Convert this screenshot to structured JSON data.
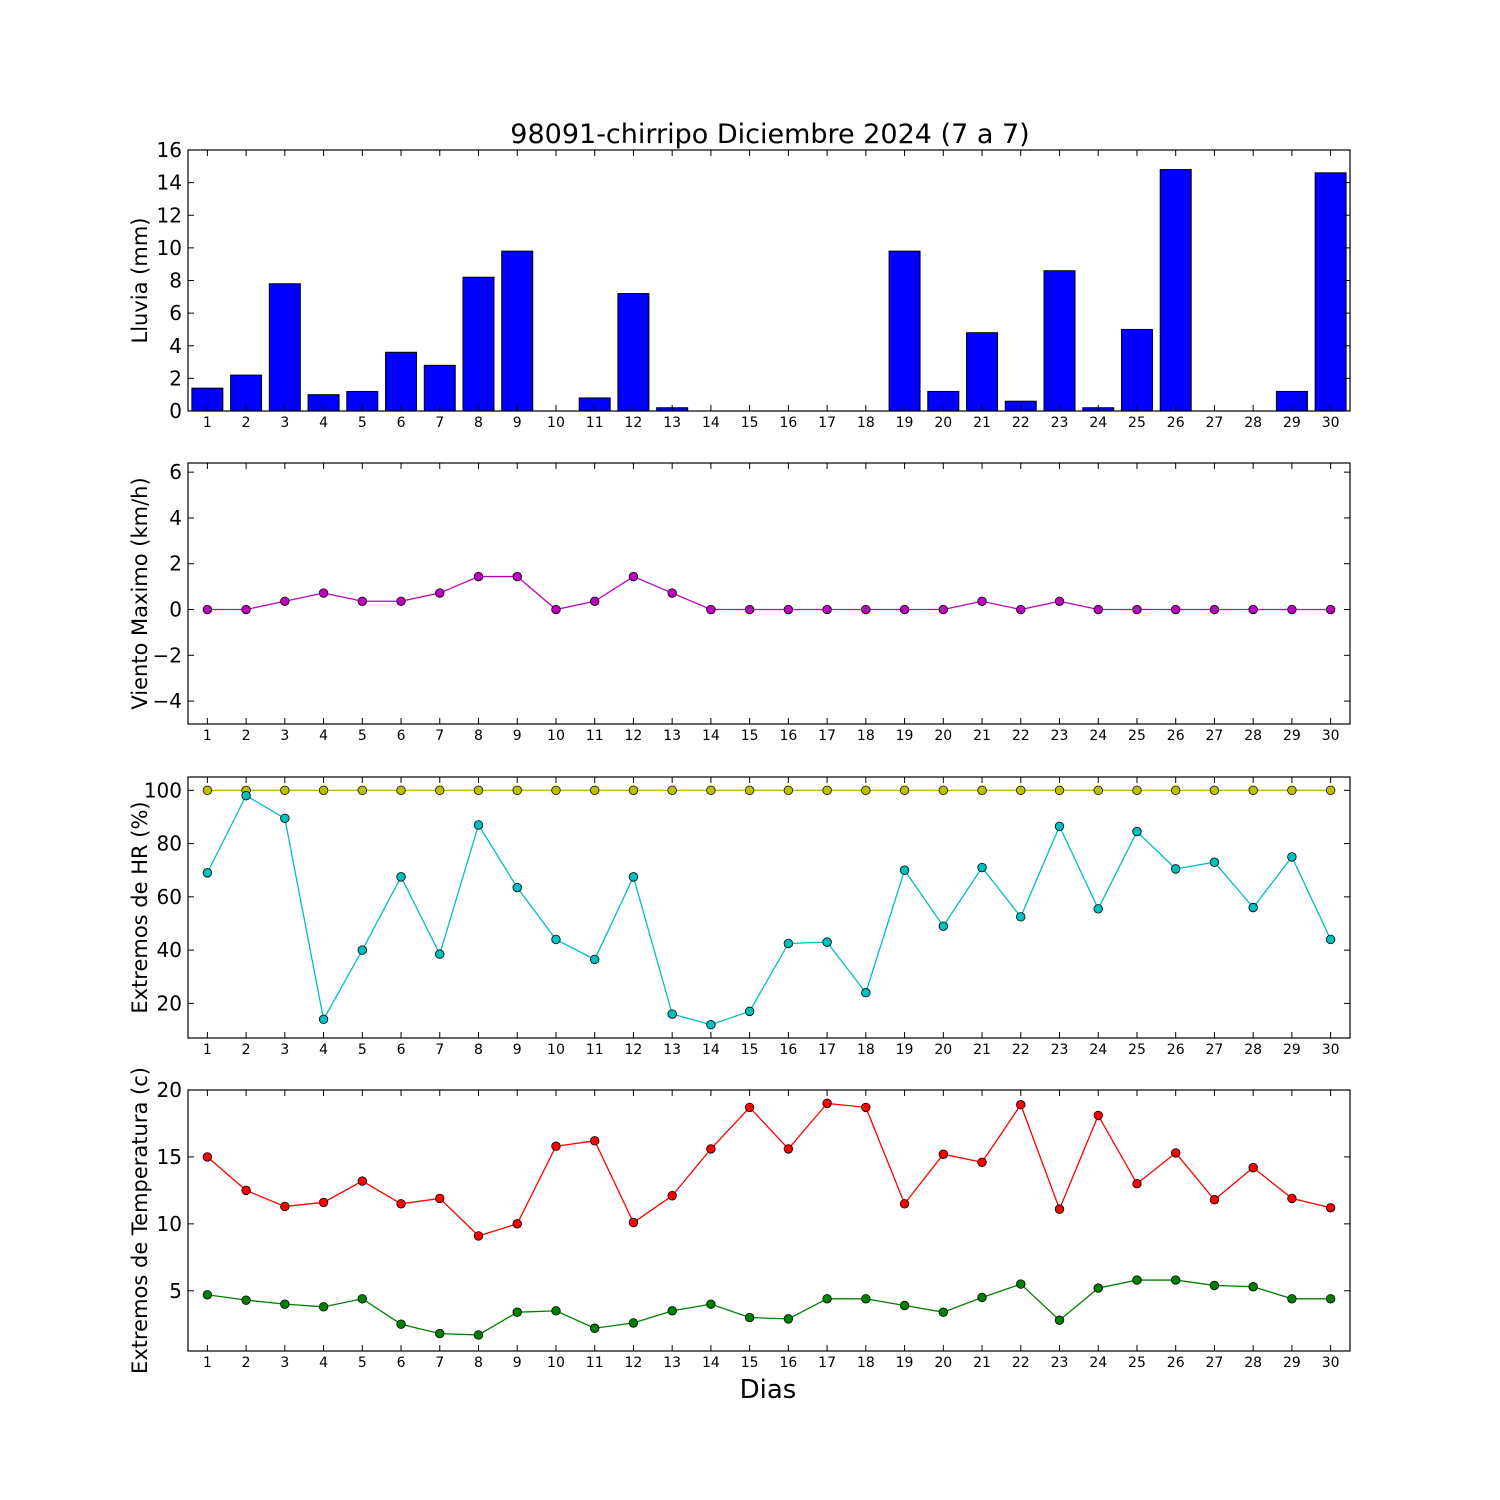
{
  "chart_data": {
    "title": "98091-chirripo Diciembre 2024  (7 a 7)",
    "xlabel": "Dias",
    "days": [
      1,
      2,
      3,
      4,
      5,
      6,
      7,
      8,
      9,
      10,
      11,
      12,
      13,
      14,
      15,
      16,
      17,
      18,
      19,
      20,
      21,
      22,
      23,
      24,
      25,
      26,
      27,
      28,
      29,
      30
    ],
    "panels": [
      {
        "type": "bar",
        "ylabel": "Lluvia (mm)",
        "ylim": [
          0,
          16
        ],
        "yticks": [
          0,
          2,
          4,
          6,
          8,
          10,
          12,
          14,
          16
        ],
        "series": [
          {
            "color": "#0000ff",
            "values": [
              1.4,
              2.2,
              7.8,
              1.0,
              1.2,
              3.6,
              2.8,
              8.2,
              9.8,
              0.0,
              0.8,
              7.2,
              0.2,
              0.0,
              0.0,
              0.0,
              0.0,
              0.0,
              9.8,
              1.2,
              4.8,
              0.6,
              8.6,
              0.2,
              5.0,
              14.8,
              0.0,
              0.0,
              1.2,
              14.6
            ]
          }
        ]
      },
      {
        "type": "line",
        "ylabel": "Viento Maximo (km/h)",
        "ylim": [
          -5,
          6.4
        ],
        "yticks": [
          -4,
          -2,
          0,
          2,
          4,
          6
        ],
        "ytick_labels": [
          "−4",
          "−2",
          "0",
          "2",
          "4",
          "6"
        ],
        "series": [
          {
            "color": "#bf00bf",
            "values": [
              0.0,
              0.0,
              0.36,
              0.72,
              0.36,
              0.36,
              0.72,
              1.44,
              1.44,
              0.0,
              0.36,
              1.44,
              0.72,
              0.0,
              0.0,
              0.0,
              0.0,
              0.0,
              0.0,
              0.0,
              0.36,
              0.0,
              0.36,
              0.0,
              0.0,
              0.0,
              0.0,
              0.0,
              0.0,
              0.0
            ]
          }
        ]
      },
      {
        "type": "line",
        "ylabel": "Extremos de HR (%)",
        "ylim": [
          7,
          105
        ],
        "yticks": [
          20,
          40,
          60,
          80,
          100
        ],
        "series": [
          {
            "color": "#bfbf00",
            "values": [
              100,
              100,
              100,
              100,
              100,
              100,
              100,
              100,
              100,
              100,
              100,
              100,
              100,
              100,
              100,
              100,
              100,
              100,
              100,
              100,
              100,
              100,
              100,
              100,
              100,
              100,
              100,
              100,
              100,
              100
            ]
          },
          {
            "color": "#00bfbf",
            "values": [
              69,
              98,
              89.5,
              14,
              40,
              67.5,
              38.5,
              87,
              63.5,
              44,
              36.5,
              67.5,
              16,
              12,
              17,
              42.5,
              43,
              24,
              70,
              49,
              71,
              52.5,
              86.5,
              55.5,
              84.5,
              70.5,
              73,
              56,
              75,
              44
            ]
          }
        ]
      },
      {
        "type": "line",
        "ylabel": "Extremos de Temperatura (c)",
        "ylim": [
          0.5,
          20
        ],
        "yticks": [
          5,
          10,
          15,
          20
        ],
        "series": [
          {
            "color": "#ff0000",
            "values": [
              15.0,
              12.5,
              11.3,
              11.6,
              13.2,
              11.5,
              11.9,
              9.1,
              10.0,
              15.8,
              16.2,
              10.1,
              12.1,
              15.6,
              18.7,
              15.6,
              19.0,
              18.7,
              11.5,
              15.2,
              14.6,
              18.9,
              11.1,
              18.1,
              13.0,
              15.3,
              11.8,
              14.2,
              11.9,
              11.2
            ]
          },
          {
            "color": "#008000",
            "values": [
              4.7,
              4.3,
              4.0,
              3.8,
              4.4,
              2.5,
              1.8,
              1.7,
              3.4,
              3.5,
              2.2,
              2.6,
              3.5,
              4.0,
              3.0,
              2.9,
              4.4,
              4.4,
              3.9,
              3.4,
              4.5,
              5.5,
              2.8,
              5.2,
              5.8,
              5.8,
              5.4,
              5.3,
              4.4,
              4.4
            ]
          }
        ]
      }
    ]
  }
}
